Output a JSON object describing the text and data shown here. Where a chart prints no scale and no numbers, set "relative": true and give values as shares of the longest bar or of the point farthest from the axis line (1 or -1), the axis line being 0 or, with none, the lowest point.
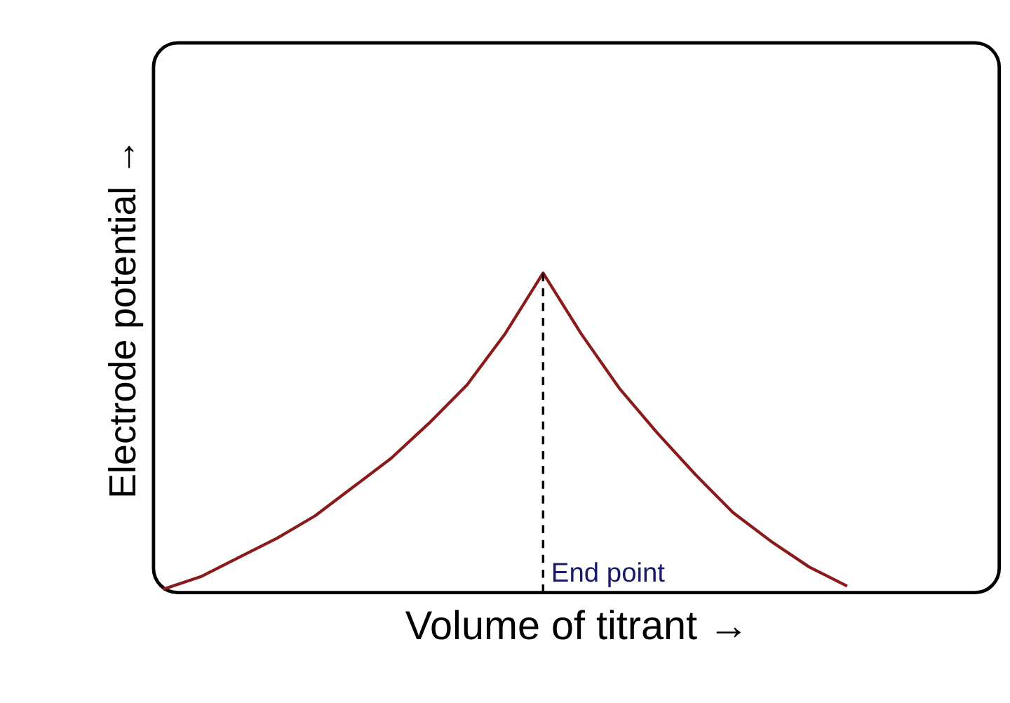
{
  "chart_data": {
    "type": "line",
    "relative": true,
    "xlabel": "Volume of titrant →",
    "ylabel": "Electrode potential →",
    "categories": [
      null,
      null,
      null,
      null,
      null,
      null,
      null,
      null,
      null,
      null,
      null,
      null,
      null,
      null,
      null,
      null,
      null,
      null,
      null,
      null,
      null,
      null,
      null
    ],
    "series": [
      {
        "color": "#8b1a1a",
        "values": [
          0.01,
          0.05,
          0.11,
          0.17,
          0.24,
          0.33,
          0.42,
          0.53,
          0.65,
          0.81,
          1,
          0.81,
          0.64,
          0.5,
          0.37,
          0.25,
          0.16,
          0.08,
          0.02,
          null,
          null,
          null,
          null
        ]
      }
    ],
    "annotations": [
      "End point"
    ],
    "tick_labels": false,
    "grid": false,
    "marker": "none",
    "line_style": "solid"
  }
}
